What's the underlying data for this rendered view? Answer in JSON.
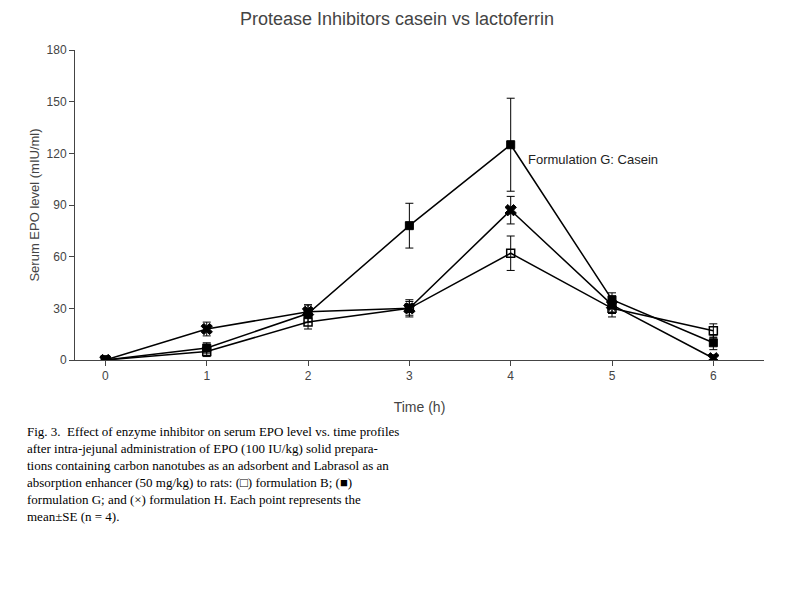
{
  "chart_data": {
    "type": "line",
    "title": "Protease Inhibitors casein vs lactoferrin",
    "x_label": "Time (h)",
    "y_label": "Serum EPO level (mIU/ml)",
    "x": [
      0,
      1,
      2,
      3,
      4,
      5,
      6
    ],
    "series": [
      {
        "values": [
          0,
          5,
          22,
          30,
          62,
          30,
          17
        ],
        "yerr": [
          0,
          3,
          4,
          5,
          10,
          5,
          4
        ],
        "marker": "square-open",
        "line_style": "solid",
        "color": "black"
      },
      {
        "values": [
          0,
          7,
          27,
          78,
          125,
          35,
          10
        ],
        "yerr": [
          0,
          3,
          5,
          13,
          27,
          4,
          4
        ],
        "marker": "square",
        "line_style": "solid",
        "color": "black"
      },
      {
        "values": [
          0,
          18,
          28,
          30,
          87,
          32,
          1
        ],
        "yerr": [
          0,
          4,
          4,
          4,
          8,
          5,
          2
        ],
        "marker": "x",
        "line_style": "solid",
        "color": "black"
      }
    ],
    "annotations": [
      {
        "text": "Formulation G: Casein",
        "x": 4.15,
        "y": 122
      }
    ],
    "caption": [
      "Fig. 3.  Effect of enzyme inhibitor on serum EPO level vs. time profiles",
      "after intra-jejunal administration of EPO (100 IU/kg) solid prepara-",
      "tions containing carbon nanotubes as an adsorbent and Labrasol as an",
      "absorption enhancer (50 mg/kg) to rats: (□) formulation B; (■)",
      "formulation G; and (×) formulation H. Each point represents the",
      "mean±SE (n = 4)."
    ],
    "xlim": [
      -0.3,
      6.5
    ],
    "xticks": [
      0,
      1,
      2,
      3,
      4,
      5,
      6
    ],
    "ylim": [
      0,
      180
    ],
    "yticks": [
      0,
      30,
      60,
      90,
      120,
      150,
      180
    ],
    "grid": false
  }
}
